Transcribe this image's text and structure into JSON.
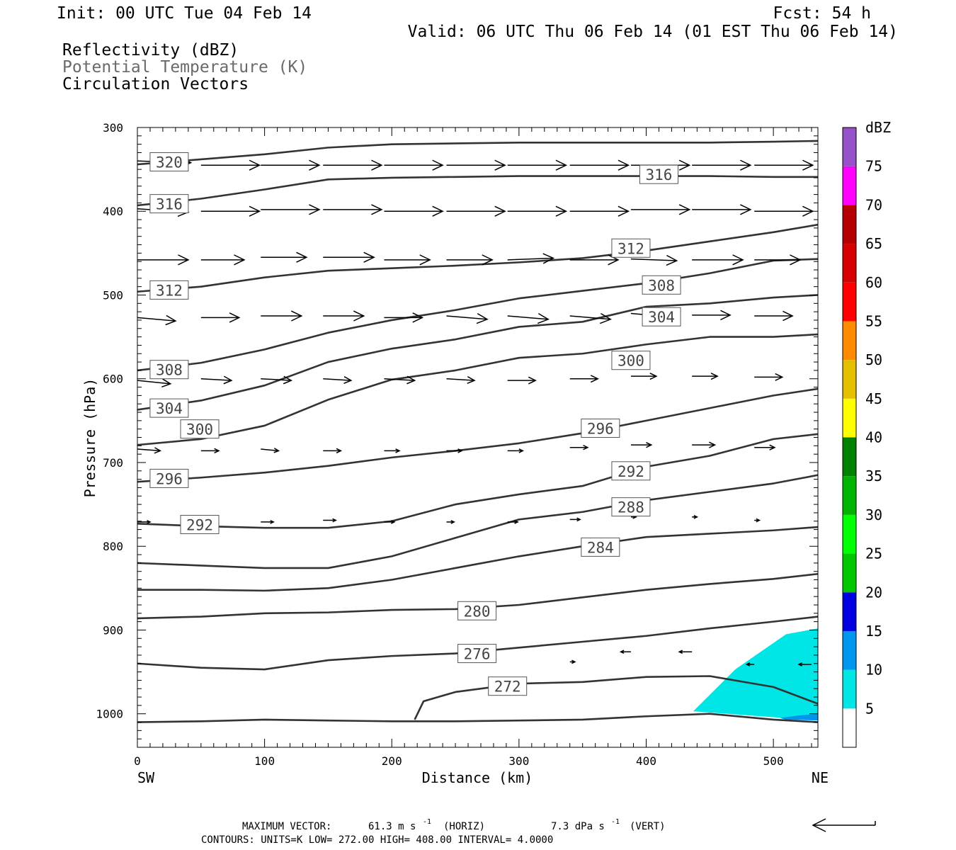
{
  "header": {
    "init": "Init: 00 UTC Tue 04 Feb 14",
    "fcst": "Fcst:   54 h",
    "valid": "Valid: 06 UTC Thu 06 Feb 14 (01 EST Thu 06 Feb 14)",
    "line1": "Reflectivity (dBZ)",
    "line2": "Potential Temperature (K)",
    "line3": "Circulation Vectors"
  },
  "footer": {
    "maxvec_label": "MAXIMUM VECTOR:",
    "maxvec_h": "61.3 m s",
    "maxvec_h_unit": "(HORIZ)",
    "maxvec_v": "7.3 dPa s",
    "maxvec_v_unit": "(VERT)",
    "contours": "CONTOURS:  UNITS=K  LOW=  272.00       HIGH=  408.00       INTERVAL=     4.0000"
  },
  "chart_data": {
    "type": "cross-section",
    "xlabel": "Distance (km)",
    "ylabel": "Pressure (hPa)",
    "xlim": [
      0,
      535
    ],
    "ylim": [
      1040,
      300
    ],
    "x_ticks": [
      "0",
      "100",
      "200",
      "300",
      "400",
      "500"
    ],
    "y_ticks": [
      "300",
      "400",
      "500",
      "600",
      "700",
      "800",
      "900",
      "1000"
    ],
    "x_end_labels": {
      "left": "SW",
      "right": "NE"
    },
    "colorbar": {
      "unit": "dBZ",
      "levels": [
        "5",
        "10",
        "15",
        "20",
        "25",
        "30",
        "35",
        "40",
        "45",
        "50",
        "55",
        "60",
        "65",
        "70",
        "75"
      ],
      "colors": [
        "#ffffff",
        "#00e5e5",
        "#0096f0",
        "#0000e0",
        "#00c800",
        "#00ff00",
        "#00b400",
        "#008000",
        "#ffff00",
        "#e6be00",
        "#ff8c00",
        "#ff0000",
        "#d70000",
        "#b40000",
        "#ff00ff",
        "#9650c8"
      ]
    },
    "contours": [
      {
        "label": "320",
        "x": [
          0,
          50,
          100,
          150,
          200,
          250,
          300,
          350,
          400,
          450,
          500,
          535
        ],
        "p": [
          344,
          338,
          332,
          324,
          320,
          319,
          318,
          318,
          318,
          318,
          317,
          316
        ]
      },
      {
        "label": "316",
        "x": [
          0,
          50,
          100,
          150,
          200,
          250,
          300,
          350,
          400,
          450,
          500,
          535
        ],
        "p": [
          393,
          385,
          374,
          362,
          360,
          359,
          358,
          358,
          358,
          358,
          359,
          359
        ]
      },
      {
        "label": "312",
        "x": [
          0,
          50,
          100,
          150,
          200,
          250,
          300,
          350,
          400,
          450,
          500,
          535
        ],
        "p": [
          496,
          490,
          479,
          471,
          468,
          465,
          461,
          456,
          447,
          436,
          425,
          416
        ]
      },
      {
        "label": "308",
        "x": [
          0,
          50,
          100,
          150,
          200,
          250,
          300,
          350,
          400,
          450,
          500,
          535
        ],
        "p": [
          590,
          581,
          565,
          545,
          530,
          518,
          504,
          495,
          486,
          474,
          459,
          457
        ]
      },
      {
        "label": "304",
        "x": [
          0,
          50,
          100,
          150,
          200,
          250,
          300,
          350,
          400,
          450,
          500,
          535
        ],
        "p": [
          637,
          626,
          608,
          580,
          564,
          553,
          538,
          532,
          514,
          510,
          503,
          500
        ]
      },
      {
        "label": "300",
        "x": [
          0,
          50,
          100,
          150,
          200,
          250,
          300,
          350,
          400,
          450,
          500,
          535
        ],
        "p": [
          679,
          672,
          656,
          625,
          601,
          590,
          575,
          570,
          559,
          550,
          550,
          547
        ]
      },
      {
        "label": "296",
        "x": [
          0,
          50,
          100,
          150,
          200,
          250,
          300,
          350,
          400,
          450,
          500,
          535
        ],
        "p": [
          723,
          718,
          712,
          704,
          694,
          686,
          677,
          665,
          650,
          635,
          620,
          612
        ]
      },
      {
        "label": "292",
        "x": [
          0,
          50,
          100,
          150,
          200,
          250,
          300,
          350,
          400,
          450,
          500,
          535
        ],
        "p": [
          773,
          776,
          778,
          778,
          770,
          750,
          738,
          728,
          705,
          692,
          672,
          666
        ]
      },
      {
        "label": "288",
        "x": [
          0,
          50,
          100,
          150,
          200,
          250,
          300,
          350,
          400,
          450,
          500,
          535
        ],
        "p": [
          820,
          823,
          826,
          826,
          812,
          790,
          768,
          759,
          745,
          735,
          725,
          715
        ]
      },
      {
        "label": "284",
        "x": [
          0,
          50,
          100,
          150,
          200,
          250,
          300,
          350,
          400,
          450,
          500,
          535
        ],
        "p": [
          852,
          852,
          853,
          850,
          840,
          826,
          812,
          800,
          789,
          785,
          781,
          777
        ]
      },
      {
        "label": "280",
        "x": [
          0,
          50,
          100,
          150,
          200,
          250,
          300,
          350,
          400,
          450,
          500,
          535
        ],
        "p": [
          886,
          884,
          880,
          879,
          876,
          875,
          870,
          861,
          852,
          845,
          839,
          833
        ]
      },
      {
        "label": "276",
        "x": [
          0,
          50,
          100,
          150,
          200,
          250,
          300,
          350,
          400,
          450,
          500,
          535
        ],
        "p": [
          940,
          945,
          947,
          936,
          931,
          928,
          921,
          914,
          907,
          898,
          890,
          884
        ]
      },
      {
        "label": "272",
        "x": [
          218,
          225,
          250,
          300,
          350,
          400,
          450,
          500,
          535
        ],
        "p": [
          1007,
          985,
          974,
          964,
          962,
          956,
          955,
          968,
          988
        ]
      },
      {
        "label": "",
        "x": [
          0,
          50,
          100,
          150,
          200,
          250,
          300,
          350,
          400,
          450,
          500,
          535
        ],
        "p": [
          1010,
          1009,
          1007,
          1008,
          1009,
          1009,
          1008,
          1007,
          1003,
          1000,
          1007,
          1010
        ]
      }
    ],
    "contour_labels": [
      {
        "text": "320",
        "x": 25,
        "p": 341
      },
      {
        "text": "316",
        "x": 410,
        "p": 356
      },
      {
        "text": "316",
        "x": 25,
        "p": 391
      },
      {
        "text": "312",
        "x": 388,
        "p": 444
      },
      {
        "text": "312",
        "x": 25,
        "p": 494
      },
      {
        "text": "308",
        "x": 412,
        "p": 488
      },
      {
        "text": "304",
        "x": 412,
        "p": 526
      },
      {
        "text": "308",
        "x": 25,
        "p": 589
      },
      {
        "text": "300",
        "x": 388,
        "p": 578
      },
      {
        "text": "304",
        "x": 25,
        "p": 635
      },
      {
        "text": "300",
        "x": 49,
        "p": 660
      },
      {
        "text": "296",
        "x": 364,
        "p": 659
      },
      {
        "text": "292",
        "x": 388,
        "p": 710
      },
      {
        "text": "296",
        "x": 25,
        "p": 719
      },
      {
        "text": "288",
        "x": 388,
        "p": 753
      },
      {
        "text": "292",
        "x": 49,
        "p": 774
      },
      {
        "text": "284",
        "x": 364,
        "p": 801
      },
      {
        "text": "280",
        "x": 267,
        "p": 877
      },
      {
        "text": "276",
        "x": 267,
        "p": 928
      },
      {
        "text": "272",
        "x": 291,
        "p": 967
      }
    ],
    "shaded": [
      {
        "dbz": "5-10",
        "polygon": [
          [
            437,
            997
          ],
          [
            470,
            947
          ],
          [
            510,
            905
          ],
          [
            535,
            898
          ],
          [
            535,
            1008
          ],
          [
            490,
            1003
          ]
        ]
      },
      {
        "dbz": "10-15",
        "polygon": [
          [
            505,
            1005
          ],
          [
            520,
            1002
          ],
          [
            535,
            1000
          ],
          [
            535,
            1008
          ],
          [
            510,
            1007
          ]
        ]
      }
    ],
    "vectors": [
      {
        "p": 345,
        "rows": [
          [
            0,
            340,
            42,
            2
          ],
          [
            50,
            345,
            46,
            0
          ],
          [
            97,
            345,
            46,
            0
          ],
          [
            146,
            345,
            46,
            0
          ],
          [
            194,
            345,
            46,
            0
          ],
          [
            243,
            345,
            46,
            0
          ],
          [
            291,
            345,
            46,
            0
          ],
          [
            340,
            345,
            46,
            0
          ],
          [
            388,
            345,
            46,
            0
          ],
          [
            436,
            345,
            46,
            0
          ],
          [
            485,
            345,
            46,
            0
          ]
        ]
      },
      {
        "p": 398,
        "rows": [
          [
            0,
            397,
            40,
            4
          ],
          [
            50,
            400,
            46,
            0
          ],
          [
            97,
            398,
            46,
            0
          ],
          [
            146,
            398,
            46,
            0
          ],
          [
            194,
            400,
            46,
            0
          ],
          [
            243,
            400,
            46,
            0
          ],
          [
            291,
            400,
            46,
            0
          ],
          [
            340,
            400,
            46,
            0
          ],
          [
            388,
            398,
            46,
            0
          ],
          [
            436,
            398,
            46,
            0
          ],
          [
            485,
            400,
            46,
            0
          ]
        ]
      },
      {
        "p": 458,
        "rows": [
          [
            0,
            458,
            40,
            0
          ],
          [
            50,
            458,
            34,
            0
          ],
          [
            97,
            455,
            36,
            0
          ],
          [
            146,
            455,
            40,
            0
          ],
          [
            194,
            458,
            36,
            0
          ],
          [
            243,
            458,
            36,
            0
          ],
          [
            291,
            458,
            36,
            -2
          ],
          [
            340,
            458,
            38,
            0
          ],
          [
            388,
            457,
            36,
            2
          ],
          [
            436,
            458,
            40,
            0
          ],
          [
            485,
            458,
            36,
            0
          ]
        ]
      },
      {
        "p": 527,
        "rows": [
          [
            0,
            527,
            30,
            4
          ],
          [
            50,
            527,
            30,
            0
          ],
          [
            97,
            525,
            32,
            0
          ],
          [
            146,
            525,
            32,
            0
          ],
          [
            194,
            527,
            30,
            0
          ],
          [
            243,
            525,
            32,
            4
          ],
          [
            291,
            525,
            32,
            4
          ],
          [
            340,
            525,
            32,
            4
          ],
          [
            388,
            522,
            30,
            4
          ],
          [
            436,
            524,
            30,
            0
          ],
          [
            485,
            525,
            30,
            0
          ]
        ]
      },
      {
        "p": 601,
        "rows": [
          [
            0,
            602,
            26,
            4
          ],
          [
            50,
            600,
            24,
            2
          ],
          [
            97,
            600,
            24,
            2
          ],
          [
            146,
            600,
            22,
            2
          ],
          [
            194,
            600,
            24,
            2
          ],
          [
            243,
            600,
            22,
            2
          ],
          [
            291,
            602,
            22,
            0
          ],
          [
            340,
            600,
            22,
            0
          ],
          [
            388,
            597,
            20,
            0
          ],
          [
            436,
            597,
            20,
            0
          ],
          [
            485,
            598,
            22,
            0
          ]
        ]
      },
      {
        "p": 684,
        "rows": [
          [
            0,
            684,
            18,
            2
          ],
          [
            50,
            686,
            14,
            0
          ],
          [
            97,
            684,
            14,
            2
          ],
          [
            146,
            686,
            14,
            0
          ],
          [
            194,
            686,
            12,
            0
          ],
          [
            243,
            686,
            12,
            0
          ],
          [
            291,
            686,
            12,
            0
          ],
          [
            340,
            682,
            14,
            0
          ],
          [
            388,
            679,
            16,
            0
          ],
          [
            436,
            679,
            18,
            0
          ],
          [
            485,
            682,
            16,
            0
          ]
        ]
      },
      {
        "p": 771,
        "rows": [
          [
            0,
            771,
            10,
            0
          ],
          [
            97,
            771,
            10,
            0
          ],
          [
            146,
            769,
            10,
            0
          ],
          [
            194,
            771,
            8,
            0
          ],
          [
            243,
            771,
            6,
            0
          ],
          [
            291,
            771,
            8,
            0
          ],
          [
            340,
            768,
            8,
            0
          ],
          [
            388,
            765,
            4,
            0
          ],
          [
            436,
            765,
            4,
            0
          ],
          [
            485,
            769,
            4,
            0
          ]
        ]
      },
      {
        "p": 938,
        "rows": [
          [
            340,
            938,
            4,
            0
          ],
          [
            388,
            926,
            -8,
            0
          ],
          [
            436,
            926,
            -10,
            0
          ],
          [
            485,
            941,
            -6,
            0
          ],
          [
            530,
            941,
            -10,
            0
          ]
        ]
      }
    ]
  }
}
